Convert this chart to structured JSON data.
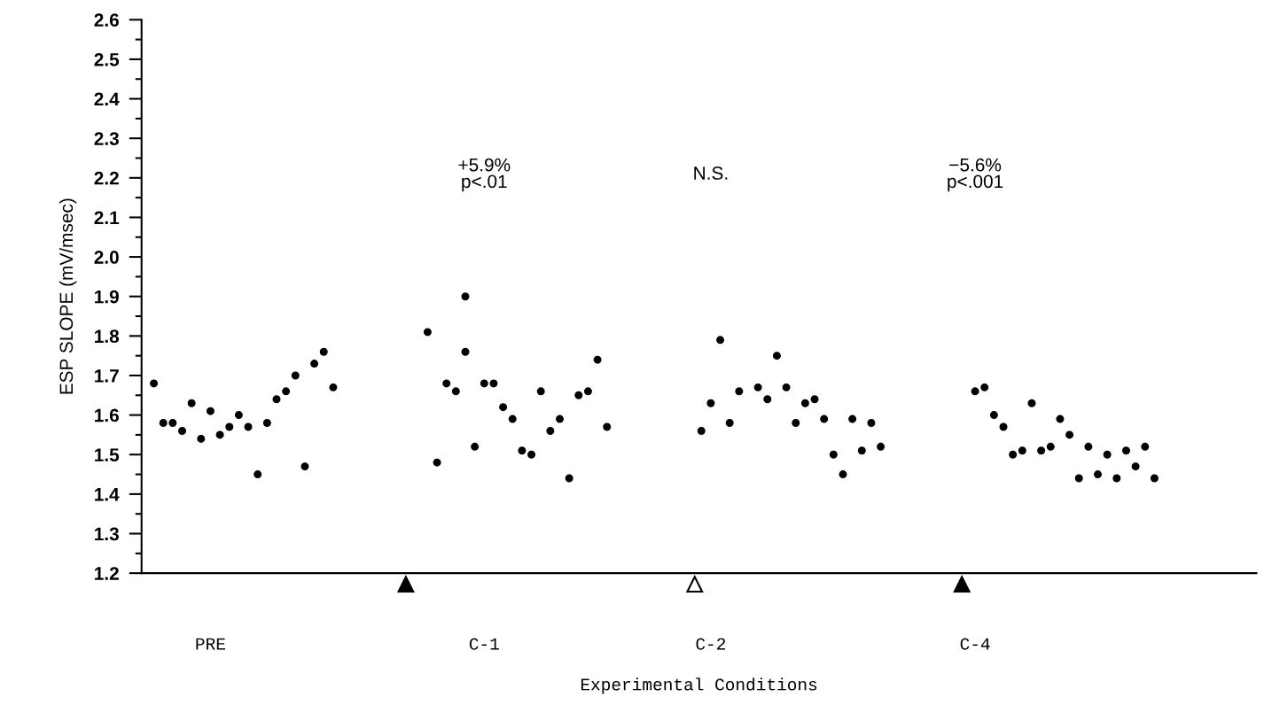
{
  "chart_data": {
    "type": "scatter",
    "ylabel": "ESP SLOPE (mV/msec)",
    "xlabel": "Experimental Conditions",
    "categories": [
      null,
      null,
      null,
      null,
      null,
      null,
      "PRE",
      null,
      null,
      null,
      null,
      null,
      null,
      null,
      null,
      null,
      null,
      null,
      null,
      null,
      null,
      null,
      null,
      null,
      null,
      null,
      null,
      null,
      null,
      null,
      null,
      null,
      null,
      null,
      null,
      "C-1",
      null,
      null,
      null,
      null,
      null,
      null,
      null,
      null,
      null,
      null,
      null,
      null,
      null,
      null,
      null,
      null,
      null,
      null,
      null,
      null,
      null,
      null,
      null,
      "C-2",
      null,
      null,
      null,
      null,
      null,
      null,
      null,
      null,
      null,
      null,
      null,
      null,
      null,
      null,
      null,
      null,
      null,
      null,
      null,
      null,
      null,
      null,
      null,
      null,
      null,
      null,
      null,
      "C-4",
      null,
      null,
      null,
      null,
      null,
      null,
      null,
      null,
      null,
      null,
      null,
      null,
      null,
      null,
      null,
      null,
      null,
      null,
      null
    ],
    "series": [
      {
        "color": "#000000",
        "values": [
          1.68,
          1.58,
          1.58,
          1.56,
          1.63,
          1.54,
          1.61,
          1.55,
          1.57,
          1.6,
          1.57,
          1.45,
          1.58,
          1.64,
          1.66,
          1.7,
          1.47,
          1.73,
          1.76,
          1.67,
          null,
          null,
          null,
          null,
          null,
          null,
          null,
          null,
          null,
          1.81,
          1.48,
          1.68,
          1.66,
          1.76,
          1.52,
          1.68,
          1.68,
          1.62,
          1.59,
          1.51,
          1.5,
          1.66,
          1.56,
          1.59,
          1.44,
          1.65,
          1.66,
          1.74,
          1.57,
          null,
          null,
          null,
          null,
          null,
          null,
          null,
          null,
          null,
          1.56,
          1.63,
          1.79,
          1.58,
          1.66,
          null,
          1.67,
          1.64,
          1.75,
          1.67,
          1.58,
          1.63,
          1.64,
          1.59,
          1.5,
          1.45,
          1.59,
          1.51,
          1.58,
          1.52,
          null,
          null,
          null,
          null,
          null,
          null,
          null,
          null,
          null,
          1.66,
          1.67,
          1.6,
          1.57,
          1.5,
          1.51,
          1.63,
          1.51,
          1.52,
          1.59,
          1.55,
          1.44,
          1.52,
          1.45,
          1.5,
          1.44,
          1.51,
          1.47,
          1.52,
          1.44
        ]
      },
      {
        "color": "#000000",
        "values": [
          null,
          null,
          null,
          null,
          null,
          null,
          null,
          null,
          null,
          null,
          null,
          null,
          null,
          null,
          null,
          null,
          null,
          null,
          null,
          null,
          null,
          null,
          null,
          null,
          null,
          null,
          null,
          null,
          null,
          null,
          null,
          null,
          null,
          1.9,
          null,
          null,
          null,
          null,
          null,
          null,
          null,
          null,
          null,
          null,
          null,
          null,
          null,
          null,
          null,
          null,
          null,
          null,
          null,
          null,
          null,
          null,
          null,
          null,
          null,
          null,
          null,
          null,
          null,
          null,
          null,
          null,
          null,
          null,
          null,
          null,
          null,
          null,
          null,
          null,
          null,
          null,
          null,
          null,
          null,
          null,
          null,
          null,
          null,
          null,
          null,
          null,
          null,
          null,
          null,
          null,
          null,
          null,
          null,
          null,
          null,
          null,
          null,
          null,
          null,
          null,
          null,
          null,
          null,
          null,
          null,
          null,
          null
        ]
      }
    ],
    "ylim": [
      1.2,
      2.6
    ],
    "yticks": [
      {
        "value": 1.2,
        "label": "1.2"
      },
      {
        "value": 1.3,
        "label": "1.3"
      },
      {
        "value": 1.4,
        "label": "1.4"
      },
      {
        "value": 1.5,
        "label": "1.5"
      },
      {
        "value": 1.6,
        "label": "1.6"
      },
      {
        "value": 1.7,
        "label": "1.7"
      },
      {
        "value": 1.8,
        "label": "1.8"
      },
      {
        "value": 1.9,
        "label": "1.9"
      },
      {
        "value": 2.0,
        "label": "2.0"
      },
      {
        "value": 2.1,
        "label": "2.1"
      },
      {
        "value": 2.2,
        "label": "2.2"
      },
      {
        "value": 2.3,
        "label": "2.3"
      },
      {
        "value": 2.4,
        "label": "2.4"
      },
      {
        "value": 2.5,
        "label": "2.5"
      },
      {
        "value": 2.6,
        "label": "2.6"
      }
    ],
    "marker": "circle",
    "grid": false,
    "legend": false,
    "annotations": [
      "+5.9%\np<.01",
      "N.S.",
      "−5.6%\np<.001"
    ]
  }
}
